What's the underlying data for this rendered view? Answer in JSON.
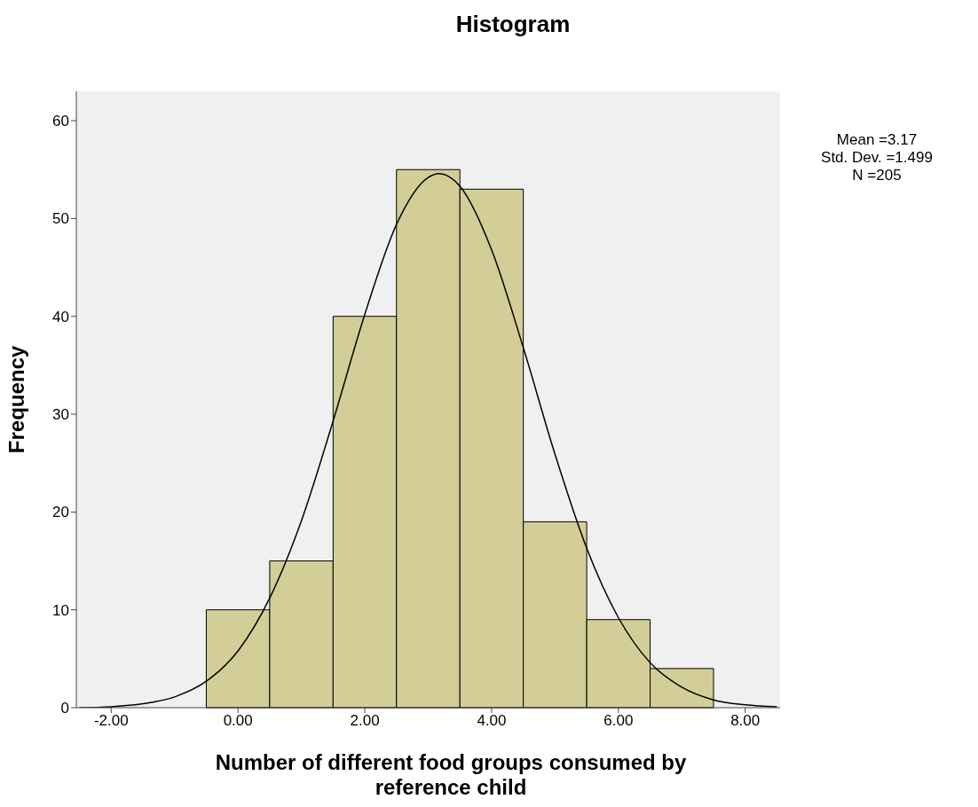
{
  "chart_data": {
    "type": "histogram",
    "title": "Histogram",
    "xlabel": "Number of different food groups consumed by reference child",
    "ylabel": "Frequency",
    "bins": [
      -0.5,
      0.5,
      1.5,
      2.5,
      3.5,
      4.5,
      5.5,
      6.5,
      7.5
    ],
    "values": [
      10,
      15,
      40,
      55,
      53,
      19,
      9,
      4
    ],
    "color": "#d3ce97",
    "series": [
      {
        "type": "line",
        "color": "#000000",
        "x": [
          -2.5,
          -2,
          -1.5,
          -1,
          -0.5,
          0,
          0.5,
          1,
          1.5,
          2,
          2.5,
          3,
          3.17,
          3.5,
          4,
          4.5,
          5,
          5.5,
          6,
          6.5,
          7,
          7.5,
          8,
          8.5
        ],
        "values": [
          0.0,
          0.1,
          0.4,
          1.1,
          2.7,
          5.8,
          11.2,
          19.1,
          29.3,
          40.2,
          49.4,
          54.2,
          54.6,
          53.3,
          46.8,
          36.8,
          25.9,
          16.3,
          9.2,
          4.6,
          2.1,
          0.8,
          0.3,
          0.1
        ]
      }
    ],
    "xlim": [
      -2.55,
      8.55
    ],
    "xticks": [
      {
        "value": -2,
        "label": "-2.00"
      },
      {
        "value": 0,
        "label": "0.00"
      },
      {
        "value": 2,
        "label": "2.00"
      },
      {
        "value": 4,
        "label": "4.00"
      },
      {
        "value": 6,
        "label": "6.00"
      },
      {
        "value": 8,
        "label": "8.00"
      }
    ],
    "ylim": [
      0,
      63
    ],
    "yticks": [
      0,
      10,
      20,
      30,
      40,
      50,
      60
    ],
    "annotations": [
      "Mean =3.17",
      "Std. Dev. =1.499",
      "N =205"
    ]
  }
}
